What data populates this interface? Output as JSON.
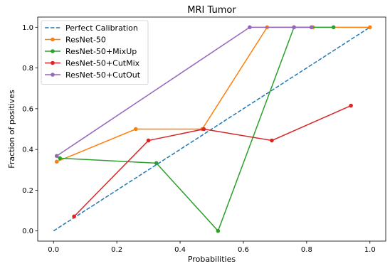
{
  "chart_data": {
    "type": "line",
    "title": "MRI Tumor",
    "xlabel": "Probabilities",
    "ylabel": "Fraction of positives",
    "xlim": [
      -0.05,
      1.05
    ],
    "ylim": [
      -0.05,
      1.05
    ],
    "xticks": [
      0.0,
      0.2,
      0.4,
      0.6,
      0.8,
      1.0
    ],
    "xtick_labels": [
      "0.0",
      "0.2",
      "0.4",
      "0.6",
      "0.8",
      "1.0"
    ],
    "yticks": [
      0.0,
      0.2,
      0.4,
      0.6,
      0.8,
      1.0
    ],
    "ytick_labels": [
      "0.0",
      "0.2",
      "0.4",
      "0.6",
      "0.8",
      "1.0"
    ],
    "grid": false,
    "legend_position": "top-left",
    "series": [
      {
        "name": "Perfect Calibration",
        "color": "#1f77b4",
        "style": "dashed",
        "markers": false,
        "x": [
          0.0,
          1.0
        ],
        "y": [
          0.0,
          1.0
        ]
      },
      {
        "name": "ResNet-50",
        "color": "#ff7f0e",
        "style": "solid",
        "markers": true,
        "x": [
          0.01,
          0.26,
          0.47,
          0.675,
          0.82,
          1.0
        ],
        "y": [
          0.34,
          0.5,
          0.5,
          1.0,
          1.0,
          1.0
        ]
      },
      {
        "name": "ResNet-50+MixUp",
        "color": "#2ca02c",
        "style": "solid",
        "markers": true,
        "x": [
          0.02,
          0.325,
          0.52,
          0.76,
          0.885
        ],
        "y": [
          0.357,
          0.333,
          0.0,
          1.0,
          1.0
        ]
      },
      {
        "name": "ResNet-50+CutMix",
        "color": "#d62728",
        "style": "solid",
        "markers": true,
        "x": [
          0.065,
          0.3,
          0.475,
          0.69,
          0.94
        ],
        "y": [
          0.071,
          0.444,
          0.5,
          0.444,
          0.615
        ]
      },
      {
        "name": "ResNet-50+CutOut",
        "color": "#9467bd",
        "style": "solid",
        "markers": true,
        "x": [
          0.01,
          0.62,
          0.76,
          0.815
        ],
        "y": [
          0.368,
          1.0,
          1.0,
          1.0
        ]
      }
    ]
  }
}
